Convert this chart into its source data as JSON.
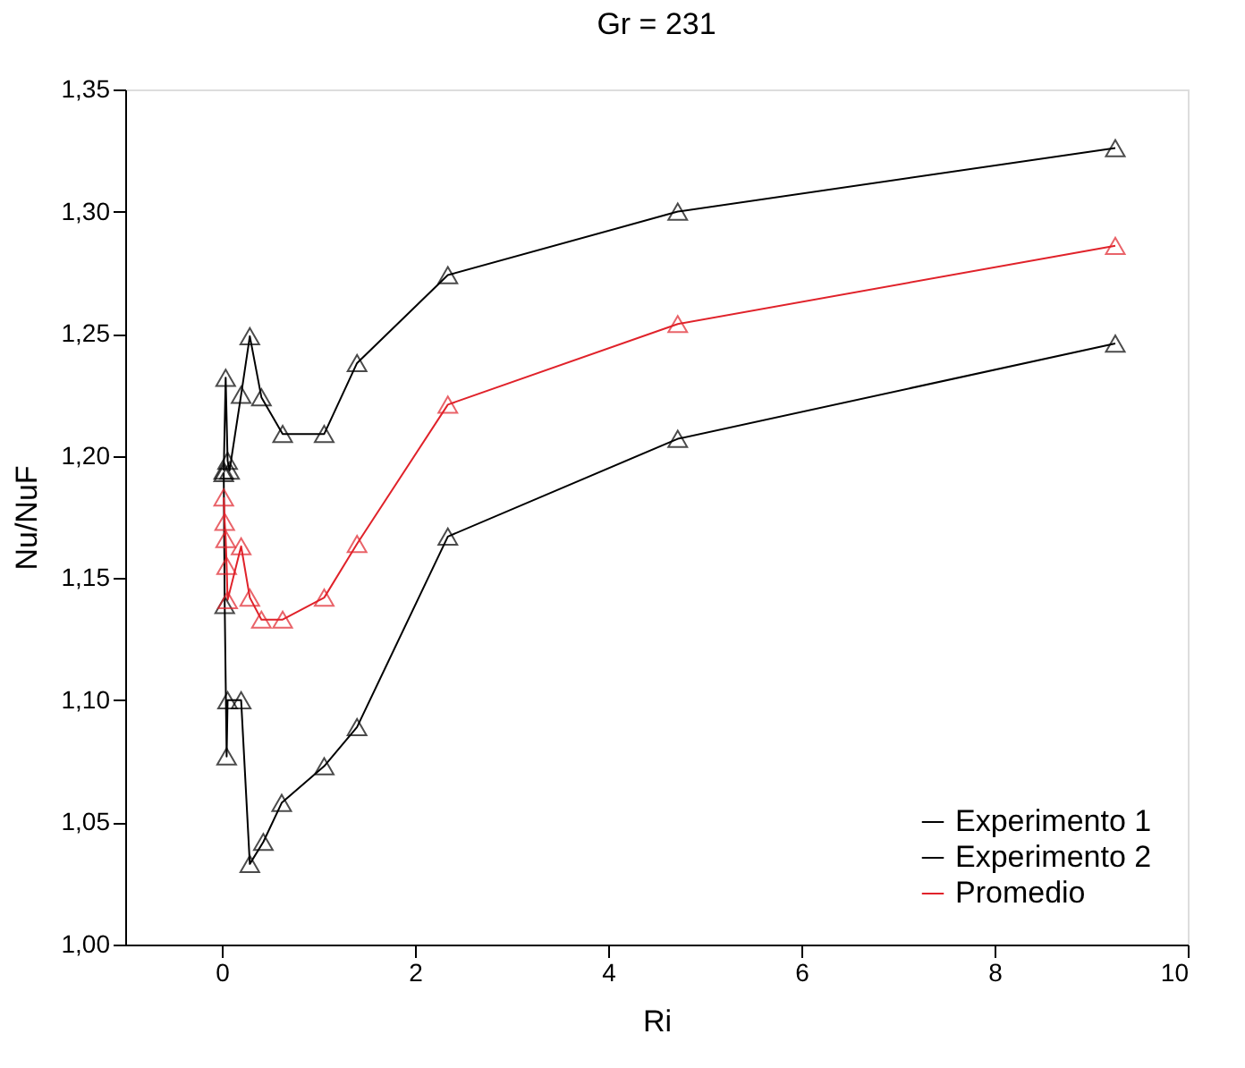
{
  "chart_data": {
    "type": "line",
    "title": "Gr = 231",
    "xlabel": "Ri",
    "ylabel": "Nu/NuF",
    "xlim": [
      -1,
      10
    ],
    "xticks": [
      0,
      2,
      4,
      6,
      8,
      10
    ],
    "ylim": [
      1.0,
      1.35
    ],
    "yticks": [
      {
        "value": 1.0,
        "label": "1,00"
      },
      {
        "value": 1.05,
        "label": "1,05"
      },
      {
        "value": 1.1,
        "label": "1,10"
      },
      {
        "value": 1.15,
        "label": "1,15"
      },
      {
        "value": 1.2,
        "label": "1,20"
      },
      {
        "value": 1.25,
        "label": "1,25"
      },
      {
        "value": 1.3,
        "label": "1,30"
      },
      {
        "value": 1.35,
        "label": "1,35"
      }
    ],
    "grid": false,
    "legend": "bottom right",
    "marker": "triangle",
    "line_style": "solid",
    "series": [
      {
        "name": "Experimento 1",
        "color": "#000000",
        "x": [
          0.02,
          0.03,
          0.05,
          0.06,
          0.2,
          0.29,
          0.43,
          0.62,
          1.06,
          1.4,
          2.34,
          4.72,
          9.25
        ],
        "values": [
          1.193,
          1.139,
          1.077,
          1.1,
          1.1,
          1.033,
          1.042,
          1.058,
          1.073,
          1.089,
          1.167,
          1.207,
          1.246
        ]
      },
      {
        "name": "Experimento 2",
        "color": "#000000",
        "x": [
          0.02,
          0.04,
          0.06,
          0.08,
          0.2,
          0.29,
          0.41,
          0.63,
          1.06,
          1.4,
          2.34,
          4.72,
          9.25
        ],
        "values": [
          1.194,
          1.232,
          1.198,
          1.194,
          1.225,
          1.249,
          1.224,
          1.209,
          1.209,
          1.238,
          1.274,
          1.3,
          1.326
        ]
      },
      {
        "name": "Promedio",
        "color": "#e0222a",
        "x": [
          0.02,
          0.03,
          0.04,
          0.05,
          0.06,
          0.2,
          0.29,
          0.41,
          0.63,
          1.06,
          1.4,
          2.34,
          4.72,
          9.25
        ],
        "values": [
          1.183,
          1.173,
          1.166,
          1.155,
          1.141,
          1.163,
          1.142,
          1.133,
          1.133,
          1.142,
          1.164,
          1.221,
          1.254,
          1.286
        ]
      }
    ]
  }
}
